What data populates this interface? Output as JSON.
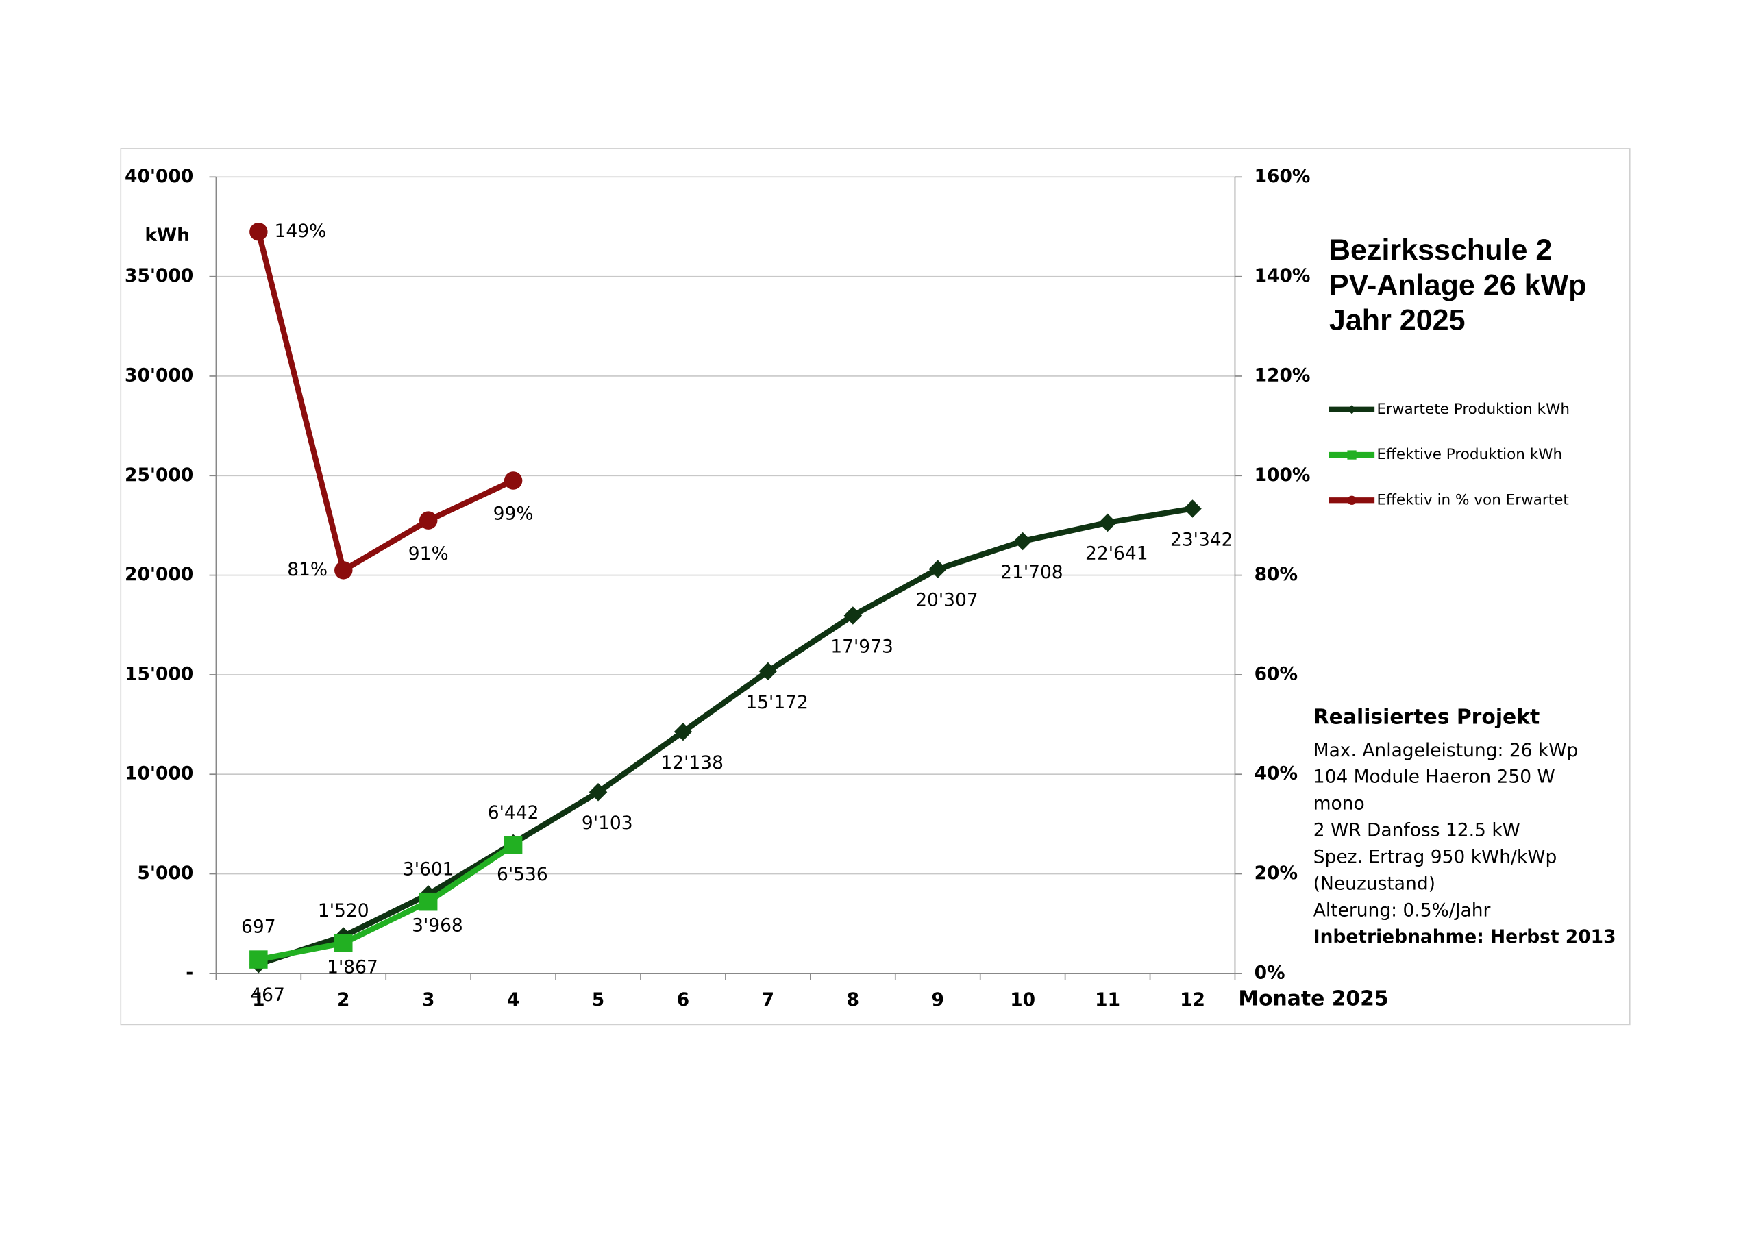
{
  "chart_data": {
    "type": "line",
    "title": [
      "Bezirksschule 2",
      "PV-Anlage 26 kWp",
      "Jahr 2025"
    ],
    "y_label": "kWh",
    "x_label": "Monate 2025",
    "categories": [
      "1",
      "2",
      "3",
      "4",
      "5",
      "6",
      "7",
      "8",
      "9",
      "10",
      "11",
      "12"
    ],
    "ylim": [
      0,
      40000
    ],
    "yticks": [
      {
        "value": 0,
        "label": "-"
      },
      {
        "value": 5000,
        "label": "5'000"
      },
      {
        "value": 10000,
        "label": "10'000"
      },
      {
        "value": 15000,
        "label": "15'000"
      },
      {
        "value": 20000,
        "label": "20'000"
      },
      {
        "value": 25000,
        "label": "25'000"
      },
      {
        "value": 30000,
        "label": "30'000"
      },
      {
        "value": 35000,
        "label": "35'000"
      },
      {
        "value": 40000,
        "label": "40'000"
      }
    ],
    "y2lim": [
      0,
      160
    ],
    "y2ticks": [
      {
        "value": 0,
        "label": "0%"
      },
      {
        "value": 20,
        "label": "20%"
      },
      {
        "value": 40,
        "label": "40%"
      },
      {
        "value": 60,
        "label": "60%"
      },
      {
        "value": 80,
        "label": "80%"
      },
      {
        "value": 100,
        "label": "100%"
      },
      {
        "value": 120,
        "label": "120%"
      },
      {
        "value": 140,
        "label": "140%"
      },
      {
        "value": 160,
        "label": "160%"
      }
    ],
    "grid": true,
    "series": [
      {
        "name": "Erwartete Produktion kWh",
        "color": "#0f3312",
        "marker": "diamond",
        "values": [
          467,
          1867,
          3968,
          6536,
          9103,
          12138,
          15172,
          17973,
          20307,
          21708,
          22641,
          23342
        ],
        "value_labels": [
          "467",
          "1'867",
          "3'968",
          "6'536",
          "9'103",
          "12'138",
          "15'172",
          "17'973",
          "20'307",
          "21'708",
          "22'641",
          "23'342"
        ]
      },
      {
        "name": "Effektive Produktion kWh",
        "color": "#22b022",
        "marker": "square",
        "values": [
          697,
          1520,
          3601,
          6442,
          null,
          null,
          null,
          null,
          null,
          null,
          null,
          null
        ],
        "value_labels": [
          "697",
          "1'520",
          "3'601",
          "6'442",
          null,
          null,
          null,
          null,
          null,
          null,
          null,
          null
        ]
      },
      {
        "name": "Effektiv in % von Erwartet",
        "color": "#8b0d0d",
        "marker": "circle",
        "axis": "y2",
        "values": [
          149,
          81,
          91,
          99,
          null,
          null,
          null,
          null,
          null,
          null,
          null,
          null
        ],
        "value_labels": [
          "149%",
          "81%",
          "91%",
          "99%",
          null,
          null,
          null,
          null,
          null,
          null,
          null,
          null
        ]
      }
    ],
    "info": {
      "heading": "Realisiertes Projekt",
      "lines": [
        "Max. Anlageleistung: 26 kWp",
        "104 Module Haeron 250 W",
        "mono",
        "2 WR Danfoss 12.5 kW",
        "Spez. Ertrag 950 kWh/kWp",
        "(Neuzustand)",
        "Alterung: 0.5%/Jahr"
      ],
      "footer": "Inbetriebnahme: Herbst 2013"
    }
  }
}
